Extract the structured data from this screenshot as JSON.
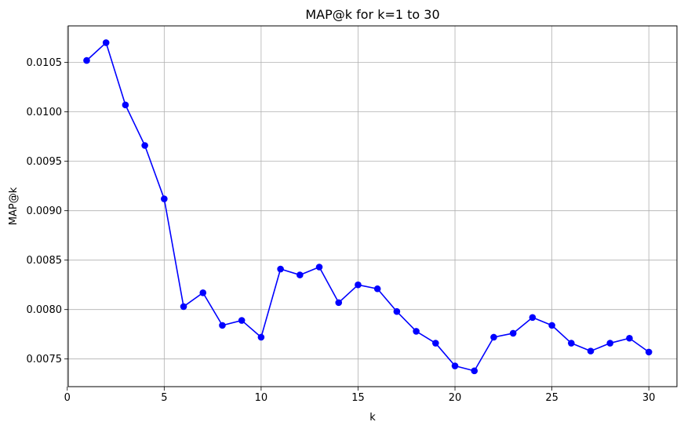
{
  "chart_data": {
    "type": "line",
    "title": "MAP@k for k=1 to 30",
    "xlabel": "k",
    "ylabel": "MAP@k",
    "xlim": [
      0.05,
      31.45
    ],
    "ylim": [
      0.00722,
      0.01087
    ],
    "xticks": [
      0,
      5,
      10,
      15,
      20,
      25,
      30
    ],
    "yticks": [
      0.0075,
      0.008,
      0.0085,
      0.009,
      0.0095,
      0.01,
      0.0105
    ],
    "ytick_labels": [
      "0.0075",
      "0.0080",
      "0.0085",
      "0.0090",
      "0.0095",
      "0.0100",
      "0.0105"
    ],
    "grid": true,
    "color": "#0000ff",
    "marker": "circle",
    "series": [
      {
        "x": [
          1,
          2,
          3,
          4,
          5,
          6,
          7,
          8,
          9,
          10,
          11,
          12,
          13,
          14,
          15,
          16,
          17,
          18,
          19,
          20,
          21,
          22,
          23,
          24,
          25,
          26,
          27,
          28,
          29,
          30
        ],
        "values": [
          0.01052,
          0.0107,
          0.01007,
          0.00966,
          0.00912,
          0.00803,
          0.00817,
          0.00784,
          0.00789,
          0.00772,
          0.00841,
          0.00835,
          0.00843,
          0.00807,
          0.00825,
          0.00821,
          0.00798,
          0.00778,
          0.00766,
          0.00743,
          0.00738,
          0.00772,
          0.00776,
          0.00792,
          0.00784,
          0.00766,
          0.00758,
          0.00766,
          0.00771,
          0.00757
        ]
      }
    ]
  }
}
